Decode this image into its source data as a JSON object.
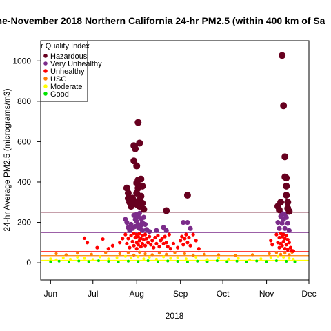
{
  "chart_data": {
    "type": "scatter",
    "title": "ne-November 2018 Northern California 24-hr PM2.5 (within 400 km of Sa",
    "xlabel": "2018",
    "ylabel": "24-hr Average PM2.5 (micrograms/m3)",
    "x_range": [
      "2018-05-25",
      "2018-12-01"
    ],
    "ylim": [
      -85,
      1100
    ],
    "x_ticks": [
      {
        "label": "Jun",
        "date": "2018-06-01"
      },
      {
        "label": "Jul",
        "date": "2018-07-01"
      },
      {
        "label": "Aug",
        "date": "2018-08-01"
      },
      {
        "label": "Sep",
        "date": "2018-09-01"
      },
      {
        "label": "Oct",
        "date": "2018-10-01"
      },
      {
        "label": "Nov",
        "date": "2018-11-01"
      },
      {
        "label": "Dec",
        "date": "2018-12-01"
      }
    ],
    "y_ticks": [
      0,
      200,
      400,
      600,
      800,
      1000
    ],
    "legend": {
      "title": "r Quality Index",
      "position": "top-left",
      "entries": [
        {
          "label": "Hazardous",
          "color": "#67001f"
        },
        {
          "label": "Very Unhealthy",
          "color": "#7b2c8a"
        },
        {
          "label": "Unhealthy",
          "color": "#ff0000"
        },
        {
          "label": "USG",
          "color": "#ff7e00"
        },
        {
          "label": "Moderate",
          "color": "#ffff00"
        },
        {
          "label": "Good",
          "color": "#00e400"
        }
      ]
    },
    "thresholds": [
      {
        "value": 250.5,
        "color": "#67001f"
      },
      {
        "value": 150.5,
        "color": "#7b2c8a"
      },
      {
        "value": 55.5,
        "color": "#ff0000"
      },
      {
        "value": 35.5,
        "color": "#ff7e00"
      },
      {
        "value": 12.1,
        "color": "#ffff00"
      }
    ],
    "categories": [
      {
        "name": "Hazardous",
        "min": 250.5,
        "color": "#67001f"
      },
      {
        "name": "Very Unhealthy",
        "min": 150.5,
        "color": "#7b2c8a"
      },
      {
        "name": "Unhealthy",
        "min": 55.5,
        "color": "#ff0000"
      },
      {
        "name": "USG",
        "min": 35.5,
        "color": "#ff7e00"
      },
      {
        "name": "Moderate",
        "min": 12.1,
        "color": "#ffff00"
      },
      {
        "name": "Good",
        "min": 0,
        "color": "#00e400"
      }
    ],
    "points": [
      {
        "x": "2018-07-25",
        "y": 370
      },
      {
        "x": "2018-07-26",
        "y": 345
      },
      {
        "x": "2018-07-26",
        "y": 320
      },
      {
        "x": "2018-07-27",
        "y": 300
      },
      {
        "x": "2018-07-28",
        "y": 280
      },
      {
        "x": "2018-07-29",
        "y": 320
      },
      {
        "x": "2018-07-30",
        "y": 580
      },
      {
        "x": "2018-07-30",
        "y": 505
      },
      {
        "x": "2018-07-31",
        "y": 565
      },
      {
        "x": "2018-07-31",
        "y": 300
      },
      {
        "x": "2018-08-01",
        "y": 480
      },
      {
        "x": "2018-08-01",
        "y": 395
      },
      {
        "x": "2018-08-01",
        "y": 345
      },
      {
        "x": "2018-08-01",
        "y": 290
      },
      {
        "x": "2018-08-02",
        "y": 695
      },
      {
        "x": "2018-08-02",
        "y": 410
      },
      {
        "x": "2018-08-02",
        "y": 370
      },
      {
        "x": "2018-08-03",
        "y": 593
      },
      {
        "x": "2018-08-03",
        "y": 315
      },
      {
        "x": "2018-08-03",
        "y": 280
      },
      {
        "x": "2018-08-04",
        "y": 415
      },
      {
        "x": "2018-08-04",
        "y": 330
      },
      {
        "x": "2018-08-05",
        "y": 380
      },
      {
        "x": "2018-08-05",
        "y": 295
      },
      {
        "x": "2018-08-06",
        "y": 265
      },
      {
        "x": "2018-08-22",
        "y": 258
      },
      {
        "x": "2018-09-06",
        "y": 335
      },
      {
        "x": "2018-11-09",
        "y": 280
      },
      {
        "x": "2018-11-10",
        "y": 262
      },
      {
        "x": "2018-11-11",
        "y": 300
      },
      {
        "x": "2018-11-12",
        "y": 1027
      },
      {
        "x": "2018-11-13",
        "y": 778
      },
      {
        "x": "2018-11-14",
        "y": 525
      },
      {
        "x": "2018-11-14",
        "y": 425
      },
      {
        "x": "2018-11-15",
        "y": 420
      },
      {
        "x": "2018-11-15",
        "y": 380
      },
      {
        "x": "2018-11-15",
        "y": 335
      },
      {
        "x": "2018-11-16",
        "y": 300
      },
      {
        "x": "2018-11-16",
        "y": 270
      },
      {
        "x": "2018-11-17",
        "y": 255
      },
      {
        "x": "2018-07-24",
        "y": 215
      },
      {
        "x": "2018-07-25",
        "y": 200
      },
      {
        "x": "2018-07-26",
        "y": 175
      },
      {
        "x": "2018-07-27",
        "y": 160
      },
      {
        "x": "2018-07-28",
        "y": 190
      },
      {
        "x": "2018-07-29",
        "y": 170
      },
      {
        "x": "2018-07-30",
        "y": 235
      },
      {
        "x": "2018-07-31",
        "y": 215
      },
      {
        "x": "2018-07-31",
        "y": 180
      },
      {
        "x": "2018-08-01",
        "y": 240
      },
      {
        "x": "2018-08-01",
        "y": 205
      },
      {
        "x": "2018-08-02",
        "y": 230
      },
      {
        "x": "2018-08-02",
        "y": 190
      },
      {
        "x": "2018-08-03",
        "y": 245
      },
      {
        "x": "2018-08-03",
        "y": 170
      },
      {
        "x": "2018-08-04",
        "y": 220
      },
      {
        "x": "2018-08-04",
        "y": 185
      },
      {
        "x": "2018-08-05",
        "y": 200
      },
      {
        "x": "2018-08-05",
        "y": 160
      },
      {
        "x": "2018-08-06",
        "y": 225
      },
      {
        "x": "2018-08-07",
        "y": 190
      },
      {
        "x": "2018-08-08",
        "y": 165
      },
      {
        "x": "2018-08-10",
        "y": 155
      },
      {
        "x": "2018-08-15",
        "y": 160
      },
      {
        "x": "2018-08-20",
        "y": 175
      },
      {
        "x": "2018-08-22",
        "y": 160
      },
      {
        "x": "2018-09-03",
        "y": 200
      },
      {
        "x": "2018-09-06",
        "y": 200
      },
      {
        "x": "2018-09-08",
        "y": 170
      },
      {
        "x": "2018-11-09",
        "y": 200
      },
      {
        "x": "2018-11-10",
        "y": 170
      },
      {
        "x": "2018-11-11",
        "y": 230
      },
      {
        "x": "2018-11-12",
        "y": 245
      },
      {
        "x": "2018-11-12",
        "y": 195
      },
      {
        "x": "2018-11-13",
        "y": 215
      },
      {
        "x": "2018-11-14",
        "y": 240
      },
      {
        "x": "2018-11-14",
        "y": 170
      },
      {
        "x": "2018-11-15",
        "y": 225
      },
      {
        "x": "2018-11-16",
        "y": 195
      },
      {
        "x": "2018-11-17",
        "y": 160
      },
      {
        "x": "2018-06-25",
        "y": 122
      },
      {
        "x": "2018-06-27",
        "y": 100
      },
      {
        "x": "2018-07-04",
        "y": 75
      },
      {
        "x": "2018-07-08",
        "y": 118
      },
      {
        "x": "2018-07-12",
        "y": 70
      },
      {
        "x": "2018-07-15",
        "y": 85
      },
      {
        "x": "2018-07-20",
        "y": 100
      },
      {
        "x": "2018-07-22",
        "y": 120
      },
      {
        "x": "2018-07-24",
        "y": 140
      },
      {
        "x": "2018-07-25",
        "y": 95
      },
      {
        "x": "2018-07-26",
        "y": 120
      },
      {
        "x": "2018-07-27",
        "y": 75
      },
      {
        "x": "2018-07-28",
        "y": 135
      },
      {
        "x": "2018-07-29",
        "y": 105
      },
      {
        "x": "2018-07-30",
        "y": 145
      },
      {
        "x": "2018-07-30",
        "y": 85
      },
      {
        "x": "2018-07-31",
        "y": 125
      },
      {
        "x": "2018-08-01",
        "y": 140
      },
      {
        "x": "2018-08-01",
        "y": 100
      },
      {
        "x": "2018-08-01",
        "y": 70
      },
      {
        "x": "2018-08-02",
        "y": 130
      },
      {
        "x": "2018-08-02",
        "y": 90
      },
      {
        "x": "2018-08-03",
        "y": 145
      },
      {
        "x": "2018-08-03",
        "y": 110
      },
      {
        "x": "2018-08-04",
        "y": 120
      },
      {
        "x": "2018-08-04",
        "y": 80
      },
      {
        "x": "2018-08-05",
        "y": 135
      },
      {
        "x": "2018-08-05",
        "y": 95
      },
      {
        "x": "2018-08-06",
        "y": 115
      },
      {
        "x": "2018-08-07",
        "y": 140
      },
      {
        "x": "2018-08-07",
        "y": 85
      },
      {
        "x": "2018-08-08",
        "y": 120
      },
      {
        "x": "2018-08-09",
        "y": 100
      },
      {
        "x": "2018-08-10",
        "y": 130
      },
      {
        "x": "2018-08-11",
        "y": 90
      },
      {
        "x": "2018-08-12",
        "y": 110
      },
      {
        "x": "2018-08-13",
        "y": 75
      },
      {
        "x": "2018-08-14",
        "y": 125
      },
      {
        "x": "2018-08-15",
        "y": 95
      },
      {
        "x": "2018-08-16",
        "y": 135
      },
      {
        "x": "2018-08-17",
        "y": 80
      },
      {
        "x": "2018-08-18",
        "y": 110
      },
      {
        "x": "2018-08-19",
        "y": 120
      },
      {
        "x": "2018-08-20",
        "y": 95
      },
      {
        "x": "2018-08-21",
        "y": 130
      },
      {
        "x": "2018-08-22",
        "y": 100
      },
      {
        "x": "2018-08-23",
        "y": 80
      },
      {
        "x": "2018-08-24",
        "y": 140
      },
      {
        "x": "2018-08-25",
        "y": 70
      },
      {
        "x": "2018-08-27",
        "y": 95
      },
      {
        "x": "2018-08-30",
        "y": 75
      },
      {
        "x": "2018-09-01",
        "y": 110
      },
      {
        "x": "2018-09-02",
        "y": 130
      },
      {
        "x": "2018-09-03",
        "y": 90
      },
      {
        "x": "2018-09-04",
        "y": 120
      },
      {
        "x": "2018-09-05",
        "y": 140
      },
      {
        "x": "2018-09-06",
        "y": 100
      },
      {
        "x": "2018-09-07",
        "y": 125
      },
      {
        "x": "2018-09-08",
        "y": 85
      },
      {
        "x": "2018-09-10",
        "y": 140
      },
      {
        "x": "2018-09-12",
        "y": 110
      },
      {
        "x": "2018-09-14",
        "y": 70
      },
      {
        "x": "2018-11-04",
        "y": 110
      },
      {
        "x": "2018-11-05",
        "y": 90
      },
      {
        "x": "2018-11-08",
        "y": 140
      },
      {
        "x": "2018-11-09",
        "y": 100
      },
      {
        "x": "2018-11-10",
        "y": 125
      },
      {
        "x": "2018-11-10",
        "y": 75
      },
      {
        "x": "2018-11-11",
        "y": 145
      },
      {
        "x": "2018-11-11",
        "y": 95
      },
      {
        "x": "2018-11-12",
        "y": 130
      },
      {
        "x": "2018-11-12",
        "y": 85
      },
      {
        "x": "2018-11-13",
        "y": 140
      },
      {
        "x": "2018-11-13",
        "y": 105
      },
      {
        "x": "2018-11-14",
        "y": 120
      },
      {
        "x": "2018-11-14",
        "y": 70
      },
      {
        "x": "2018-11-15",
        "y": 135
      },
      {
        "x": "2018-11-15",
        "y": 90
      },
      {
        "x": "2018-11-16",
        "y": 115
      },
      {
        "x": "2018-11-16",
        "y": 65
      },
      {
        "x": "2018-11-17",
        "y": 100
      },
      {
        "x": "2018-11-18",
        "y": 75
      },
      {
        "x": "2018-11-19",
        "y": 60
      },
      {
        "x": "2018-11-20",
        "y": 58
      },
      {
        "x": "2018-06-05",
        "y": 45
      },
      {
        "x": "2018-06-12",
        "y": 40
      },
      {
        "x": "2018-06-20",
        "y": 48
      },
      {
        "x": "2018-06-30",
        "y": 42
      },
      {
        "x": "2018-07-10",
        "y": 50
      },
      {
        "x": "2018-07-20",
        "y": 45
      },
      {
        "x": "2018-07-26",
        "y": 50
      },
      {
        "x": "2018-07-30",
        "y": 38
      },
      {
        "x": "2018-08-03",
        "y": 52
      },
      {
        "x": "2018-08-07",
        "y": 44
      },
      {
        "x": "2018-08-12",
        "y": 40
      },
      {
        "x": "2018-08-17",
        "y": 48
      },
      {
        "x": "2018-08-22",
        "y": 42
      },
      {
        "x": "2018-08-28",
        "y": 50
      },
      {
        "x": "2018-09-04",
        "y": 45
      },
      {
        "x": "2018-09-10",
        "y": 38
      },
      {
        "x": "2018-09-18",
        "y": 42
      },
      {
        "x": "2018-09-28",
        "y": 40
      },
      {
        "x": "2018-10-10",
        "y": 37
      },
      {
        "x": "2018-10-22",
        "y": 40
      },
      {
        "x": "2018-11-03",
        "y": 45
      },
      {
        "x": "2018-11-08",
        "y": 50
      },
      {
        "x": "2018-11-11",
        "y": 42
      },
      {
        "x": "2018-11-14",
        "y": 48
      },
      {
        "x": "2018-11-17",
        "y": 40
      },
      {
        "x": "2018-11-19",
        "y": 52
      },
      {
        "x": "2018-06-01",
        "y": 20
      },
      {
        "x": "2018-06-05",
        "y": 15
      },
      {
        "x": "2018-06-10",
        "y": 25
      },
      {
        "x": "2018-06-15",
        "y": 18
      },
      {
        "x": "2018-06-20",
        "y": 28
      },
      {
        "x": "2018-06-25",
        "y": 22
      },
      {
        "x": "2018-07-01",
        "y": 16
      },
      {
        "x": "2018-07-06",
        "y": 30
      },
      {
        "x": "2018-07-12",
        "y": 20
      },
      {
        "x": "2018-07-18",
        "y": 26
      },
      {
        "x": "2018-07-24",
        "y": 32
      },
      {
        "x": "2018-07-28",
        "y": 24
      },
      {
        "x": "2018-08-02",
        "y": 30
      },
      {
        "x": "2018-08-06",
        "y": 20
      },
      {
        "x": "2018-08-10",
        "y": 28
      },
      {
        "x": "2018-08-15",
        "y": 18
      },
      {
        "x": "2018-08-20",
        "y": 30
      },
      {
        "x": "2018-08-25",
        "y": 22
      },
      {
        "x": "2018-08-30",
        "y": 26
      },
      {
        "x": "2018-09-05",
        "y": 20
      },
      {
        "x": "2018-09-12",
        "y": 28
      },
      {
        "x": "2018-09-20",
        "y": 16
      },
      {
        "x": "2018-09-28",
        "y": 24
      },
      {
        "x": "2018-10-05",
        "y": 18
      },
      {
        "x": "2018-10-12",
        "y": 22
      },
      {
        "x": "2018-10-20",
        "y": 15
      },
      {
        "x": "2018-10-28",
        "y": 20
      },
      {
        "x": "2018-11-04",
        "y": 26
      },
      {
        "x": "2018-11-09",
        "y": 32
      },
      {
        "x": "2018-11-13",
        "y": 28
      },
      {
        "x": "2018-11-17",
        "y": 22
      },
      {
        "x": "2018-11-20",
        "y": 18
      },
      {
        "x": "2018-06-01",
        "y": 5
      },
      {
        "x": "2018-06-07",
        "y": 8
      },
      {
        "x": "2018-06-14",
        "y": 4
      },
      {
        "x": "2018-06-21",
        "y": 9
      },
      {
        "x": "2018-06-28",
        "y": 6
      },
      {
        "x": "2018-07-05",
        "y": 10
      },
      {
        "x": "2018-07-12",
        "y": 7
      },
      {
        "x": "2018-07-19",
        "y": 4
      },
      {
        "x": "2018-07-26",
        "y": 8
      },
      {
        "x": "2018-08-02",
        "y": 6
      },
      {
        "x": "2018-08-09",
        "y": 10
      },
      {
        "x": "2018-08-16",
        "y": 5
      },
      {
        "x": "2018-08-23",
        "y": 9
      },
      {
        "x": "2018-08-30",
        "y": 7
      },
      {
        "x": "2018-09-06",
        "y": 4
      },
      {
        "x": "2018-09-13",
        "y": 8
      },
      {
        "x": "2018-09-20",
        "y": 6
      },
      {
        "x": "2018-09-27",
        "y": 10
      },
      {
        "x": "2018-10-04",
        "y": 5
      },
      {
        "x": "2018-10-11",
        "y": 8
      },
      {
        "x": "2018-10-18",
        "y": 4
      },
      {
        "x": "2018-10-25",
        "y": 9
      },
      {
        "x": "2018-11-01",
        "y": 6
      },
      {
        "x": "2018-11-08",
        "y": 10
      },
      {
        "x": "2018-11-15",
        "y": 7
      },
      {
        "x": "2018-11-21",
        "y": 5
      }
    ]
  }
}
